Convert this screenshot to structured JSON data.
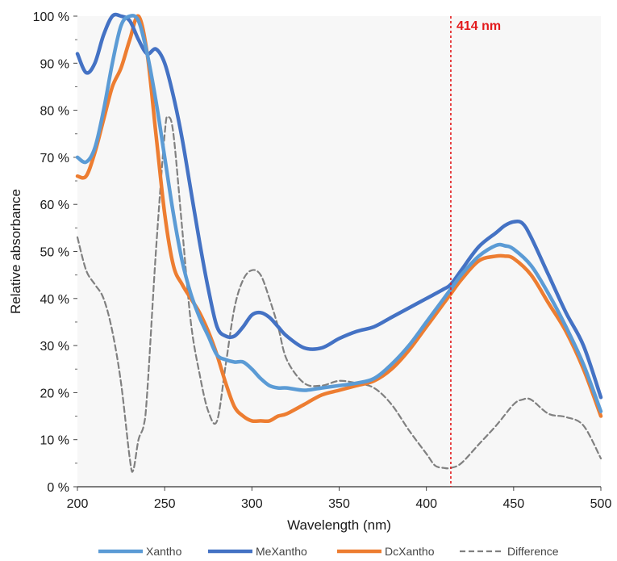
{
  "chart_data": {
    "type": "line",
    "xlabel": "Wavelength (nm)",
    "ylabel": "Relative absorbance",
    "xlim": [
      200,
      500
    ],
    "ylim": [
      0,
      100
    ],
    "x_ticks": [
      200,
      250,
      300,
      350,
      400,
      450,
      500
    ],
    "y_ticks": [
      0,
      10,
      20,
      30,
      40,
      50,
      60,
      70,
      80,
      90,
      100
    ],
    "y_tick_suffix": " %",
    "grid": false,
    "background": "#f7f7f7",
    "legend_position": "bottom",
    "annotation": {
      "x": 414,
      "label": "414 nm",
      "color": "#e31a1c",
      "style": "dotted"
    },
    "series": [
      {
        "name": "Xantho",
        "color": "#5b9bd5",
        "dash": "solid",
        "x": [
          200,
          205,
          210,
          215,
          220,
          225,
          230,
          235,
          240,
          245,
          250,
          255,
          260,
          265,
          270,
          275,
          280,
          285,
          290,
          295,
          300,
          305,
          310,
          315,
          320,
          330,
          340,
          350,
          360,
          370,
          380,
          390,
          400,
          410,
          414,
          420,
          430,
          440,
          445,
          450,
          460,
          470,
          480,
          490,
          500
        ],
        "y": [
          70,
          69,
          72,
          80,
          90,
          98,
          100,
          99,
          92,
          82,
          70,
          58,
          48,
          41,
          36,
          32,
          28,
          27,
          26.5,
          26.5,
          25,
          23,
          21.5,
          21,
          21,
          20.5,
          21,
          21.5,
          22,
          23,
          26,
          30,
          35,
          40,
          42,
          45,
          49,
          51.3,
          51.2,
          50.5,
          47,
          41,
          34,
          26,
          16
        ]
      },
      {
        "name": "MeXantho",
        "color": "#4472c4",
        "dash": "solid",
        "x": [
          200,
          205,
          210,
          215,
          220,
          225,
          230,
          235,
          240,
          245,
          250,
          255,
          260,
          265,
          270,
          275,
          280,
          285,
          290,
          295,
          300,
          305,
          310,
          315,
          320,
          330,
          340,
          350,
          360,
          370,
          380,
          390,
          400,
          410,
          414,
          420,
          430,
          440,
          445,
          450,
          455,
          460,
          470,
          480,
          490,
          500
        ],
        "y": [
          92,
          88,
          90,
          96,
          100,
          100,
          99,
          95,
          92,
          93,
          90,
          83,
          74,
          63,
          52,
          42,
          34,
          32,
          32,
          34,
          36.5,
          37,
          36,
          34,
          32,
          29.5,
          29.5,
          31.5,
          33,
          34,
          36,
          38,
          40,
          42,
          43,
          46,
          51,
          54,
          55.5,
          56.3,
          56,
          53,
          45,
          37,
          30,
          19
        ]
      },
      {
        "name": "DcXantho",
        "color": "#ed7d31",
        "dash": "solid",
        "x": [
          200,
          205,
          210,
          215,
          220,
          225,
          230,
          235,
          240,
          245,
          250,
          255,
          260,
          265,
          270,
          275,
          280,
          285,
          290,
          295,
          300,
          305,
          310,
          315,
          320,
          330,
          340,
          350,
          360,
          370,
          380,
          390,
          400,
          410,
          414,
          420,
          430,
          440,
          445,
          450,
          460,
          470,
          480,
          490,
          500
        ],
        "y": [
          66,
          66,
          71,
          78,
          85,
          89,
          95,
          100,
          92,
          75,
          58,
          47,
          43,
          40,
          37,
          33,
          28,
          22,
          17,
          15,
          14,
          14,
          14,
          15,
          15.5,
          17.5,
          19.5,
          20.5,
          21.5,
          22.5,
          25,
          29,
          34,
          39,
          41,
          44,
          48,
          49,
          49,
          48.5,
          45,
          39,
          33,
          25,
          15
        ]
      },
      {
        "name": "Difference",
        "color": "#808080",
        "dash": "dashed",
        "x": [
          200,
          205,
          210,
          215,
          220,
          225,
          230,
          232,
          235,
          238,
          240,
          245,
          250,
          252,
          255,
          260,
          265,
          270,
          275,
          280,
          285,
          290,
          295,
          300,
          305,
          310,
          315,
          320,
          330,
          340,
          350,
          360,
          370,
          380,
          390,
          400,
          405,
          410,
          414,
          420,
          430,
          440,
          450,
          455,
          460,
          470,
          480,
          490,
          500
        ],
        "y": [
          53,
          46,
          43,
          40,
          33,
          22,
          6,
          3.5,
          10,
          13,
          20,
          50,
          75,
          78.5,
          75,
          55,
          35,
          24,
          16,
          14,
          26,
          38,
          44,
          46,
          45,
          40,
          34,
          27,
          22,
          21.5,
          22.5,
          22,
          21,
          17.5,
          12,
          7,
          4.5,
          4,
          4,
          5,
          9,
          13,
          17.5,
          18.5,
          18.5,
          15.5,
          14.8,
          13,
          6
        ]
      }
    ]
  }
}
